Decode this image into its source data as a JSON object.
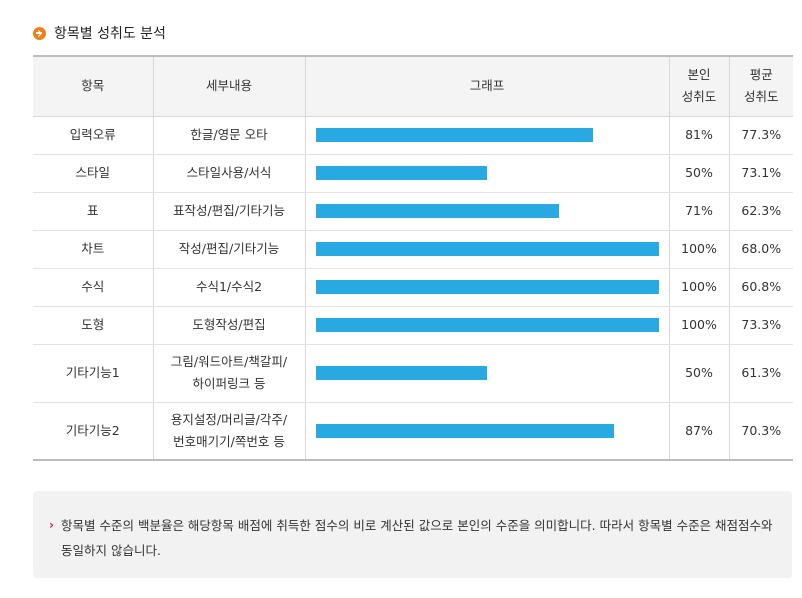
{
  "section": {
    "title": "항목별 성취도 분석",
    "icon": "arrow-right-circle-icon",
    "icon_color": "#f07f1a"
  },
  "table": {
    "headers": {
      "item": "항목",
      "detail": "세부내용",
      "graph": "그래프",
      "mine_line1": "본인",
      "mine_line2": "성취도",
      "avg_line1": "평균",
      "avg_line2": "성취도"
    },
    "bar_color": "#29a9e1",
    "rows": [
      {
        "item": "입력오류",
        "detail": [
          "한글/영문 오타"
        ],
        "mine": "81%",
        "mine_value": 81,
        "avg": "77.3%"
      },
      {
        "item": "스타일",
        "detail": [
          "스타일사용/서식"
        ],
        "mine": "50%",
        "mine_value": 50,
        "avg": "73.1%"
      },
      {
        "item": "표",
        "detail": [
          "표작성/편집/기타기능"
        ],
        "mine": "71%",
        "mine_value": 71,
        "avg": "62.3%"
      },
      {
        "item": "차트",
        "detail": [
          "작성/편집/기타기능"
        ],
        "mine": "100%",
        "mine_value": 100,
        "avg": "68.0%"
      },
      {
        "item": "수식",
        "detail": [
          "수식1/수식2"
        ],
        "mine": "100%",
        "mine_value": 100,
        "avg": "60.8%"
      },
      {
        "item": "도형",
        "detail": [
          "도형작성/편집"
        ],
        "mine": "100%",
        "mine_value": 100,
        "avg": "73.3%"
      },
      {
        "item": "기타기능1",
        "detail": [
          "그림/워드아트/책갈피/",
          "하이퍼링크 등"
        ],
        "mine": "50%",
        "mine_value": 50,
        "avg": "61.3%"
      },
      {
        "item": "기타기능2",
        "detail": [
          "용지설정/머리글/각주/",
          "번호매기기/쪽번호 등"
        ],
        "mine": "87%",
        "mine_value": 87,
        "avg": "70.3%"
      }
    ]
  },
  "note": {
    "marker_color": "#e0262e",
    "text": "항목별 수준의 백분율은 해당항목 배점에 취득한 점수의 비로 계산된 값으로 본인의 수준을 의미합니다. 따라서 항목별 수준은 채점점수와 동일하지 않습니다."
  }
}
